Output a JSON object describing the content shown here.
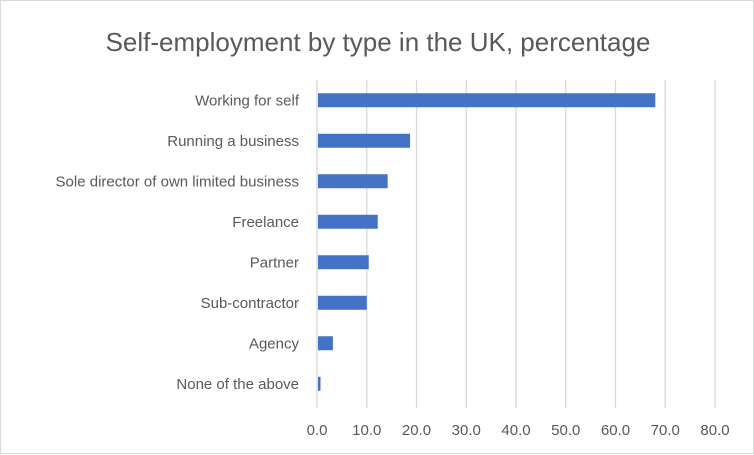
{
  "chart_data": {
    "type": "bar",
    "orientation": "horizontal",
    "title": "Self-employment by type in the UK, percentage",
    "xlabel": "",
    "ylabel": "",
    "categories": [
      "Working for self",
      "Running a business",
      "Sole director of own limited business",
      "Freelance",
      "Partner",
      "Sub-contractor",
      "Agency",
      "None of the above"
    ],
    "values": [
      68.0,
      18.7,
      14.2,
      12.2,
      10.4,
      10.0,
      3.2,
      0.7
    ],
    "xlim": [
      0,
      80
    ],
    "xticks": [
      "0.0",
      "10.0",
      "20.0",
      "30.0",
      "40.0",
      "50.0",
      "60.0",
      "70.0",
      "80.0"
    ],
    "grid": "vertical",
    "legend": "none",
    "bar_color": "#4472C4",
    "grid_color": "#d9d9d9",
    "text_color": "#595959"
  }
}
